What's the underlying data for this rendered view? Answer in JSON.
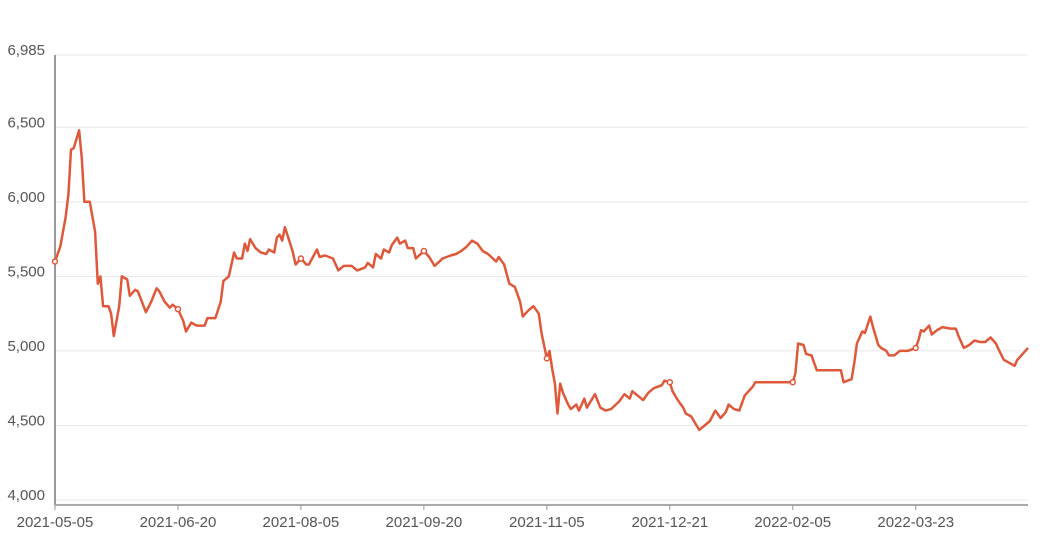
{
  "chart_data": {
    "type": "line",
    "x": [
      "2021-05-05",
      "2021-05-07",
      "2021-05-09",
      "2021-05-10",
      "2021-05-11",
      "2021-05-12",
      "2021-05-14",
      "2021-05-15",
      "2021-05-16",
      "2021-05-18",
      "2021-05-20",
      "2021-05-21",
      "2021-05-22",
      "2021-05-23",
      "2021-05-25",
      "2021-05-26",
      "2021-05-27",
      "2021-05-29",
      "2021-05-30",
      "2021-06-01",
      "2021-06-02",
      "2021-06-04",
      "2021-06-05",
      "2021-06-08",
      "2021-06-10",
      "2021-06-12",
      "2021-06-13",
      "2021-06-15",
      "2021-06-17",
      "2021-06-18",
      "2021-06-20",
      "2021-06-22",
      "2021-06-23",
      "2021-06-25",
      "2021-06-27",
      "2021-06-30",
      "2021-07-01",
      "2021-07-04",
      "2021-07-06",
      "2021-07-07",
      "2021-07-09",
      "2021-07-11",
      "2021-07-12",
      "2021-07-14",
      "2021-07-15",
      "2021-07-16",
      "2021-07-17",
      "2021-07-19",
      "2021-07-21",
      "2021-07-23",
      "2021-07-24",
      "2021-07-26",
      "2021-07-27",
      "2021-07-28",
      "2021-07-29",
      "2021-07-30",
      "2021-08-01",
      "2021-08-02",
      "2021-08-03",
      "2021-08-05",
      "2021-08-07",
      "2021-08-08",
      "2021-08-11",
      "2021-08-12",
      "2021-08-14",
      "2021-08-17",
      "2021-08-19",
      "2021-08-21",
      "2021-08-24",
      "2021-08-26",
      "2021-08-29",
      "2021-08-30",
      "2021-09-01",
      "2021-09-02",
      "2021-09-04",
      "2021-09-05",
      "2021-09-07",
      "2021-09-08",
      "2021-09-10",
      "2021-09-11",
      "2021-09-13",
      "2021-09-14",
      "2021-09-16",
      "2021-09-17",
      "2021-09-20",
      "2021-09-22",
      "2021-09-24",
      "2021-09-27",
      "2021-09-30",
      "2021-10-02",
      "2021-10-04",
      "2021-10-06",
      "2021-10-08",
      "2021-10-10",
      "2021-10-12",
      "2021-10-14",
      "2021-10-17",
      "2021-10-18",
      "2021-10-20",
      "2021-10-22",
      "2021-10-24",
      "2021-10-26",
      "2021-10-27",
      "2021-10-29",
      "2021-10-31",
      "2021-11-02",
      "2021-11-03",
      "2021-11-05",
      "2021-11-06",
      "2021-11-07",
      "2021-11-08",
      "2021-11-09",
      "2021-11-10",
      "2021-11-11",
      "2021-11-13",
      "2021-11-14",
      "2021-11-16",
      "2021-11-17",
      "2021-11-19",
      "2021-11-20",
      "2021-11-21",
      "2021-11-23",
      "2021-11-25",
      "2021-11-27",
      "2021-11-29",
      "2021-12-02",
      "2021-12-04",
      "2021-12-06",
      "2021-12-07",
      "2021-12-09",
      "2021-12-11",
      "2021-12-13",
      "2021-12-15",
      "2021-12-18",
      "2021-12-19",
      "2021-12-21",
      "2021-12-22",
      "2021-12-24",
      "2021-12-26",
      "2021-12-27",
      "2021-12-29",
      "2021-12-30",
      "2022-01-01",
      "2022-01-03",
      "2022-01-05",
      "2022-01-07",
      "2022-01-09",
      "2022-01-11",
      "2022-01-12",
      "2022-01-14",
      "2022-01-16",
      "2022-01-18",
      "2022-01-20",
      "2022-01-21",
      "2022-01-22",
      "2022-01-25",
      "2022-01-31",
      "2022-02-05",
      "2022-02-06",
      "2022-02-07",
      "2022-02-09",
      "2022-02-10",
      "2022-02-12",
      "2022-02-14",
      "2022-02-17",
      "2022-02-23",
      "2022-02-24",
      "2022-02-27",
      "2022-02-28",
      "2022-03-01",
      "2022-03-03",
      "2022-03-04",
      "2022-03-06",
      "2022-03-07",
      "2022-03-09",
      "2022-03-10",
      "2022-03-12",
      "2022-03-13",
      "2022-03-15",
      "2022-03-17",
      "2022-03-20",
      "2022-03-23",
      "2022-03-24",
      "2022-03-25",
      "2022-03-26",
      "2022-03-28",
      "2022-03-29",
      "2022-03-31",
      "2022-04-02",
      "2022-04-05",
      "2022-04-07",
      "2022-04-08",
      "2022-04-10",
      "2022-04-12",
      "2022-04-14",
      "2022-04-16",
      "2022-04-18",
      "2022-04-20",
      "2022-04-22",
      "2022-04-23",
      "2022-04-25",
      "2022-04-27",
      "2022-04-29",
      "2022-04-30",
      "2022-05-04"
    ],
    "values": [
      5600,
      5700,
      5900,
      6050,
      6350,
      6360,
      6480,
      6300,
      6000,
      6000,
      5800,
      5450,
      5500,
      5300,
      5300,
      5250,
      5100,
      5300,
      5500,
      5480,
      5370,
      5410,
      5400,
      5260,
      5330,
      5420,
      5400,
      5330,
      5290,
      5310,
      5280,
      5200,
      5130,
      5190,
      5170,
      5170,
      5220,
      5220,
      5330,
      5470,
      5500,
      5660,
      5620,
      5620,
      5720,
      5670,
      5750,
      5690,
      5660,
      5650,
      5680,
      5660,
      5760,
      5780,
      5740,
      5830,
      5720,
      5660,
      5580,
      5620,
      5580,
      5580,
      5680,
      5630,
      5640,
      5620,
      5540,
      5570,
      5570,
      5540,
      5560,
      5590,
      5560,
      5650,
      5620,
      5680,
      5660,
      5710,
      5760,
      5720,
      5740,
      5690,
      5690,
      5620,
      5670,
      5630,
      5570,
      5620,
      5640,
      5650,
      5670,
      5700,
      5740,
      5720,
      5670,
      5650,
      5600,
      5630,
      5580,
      5450,
      5430,
      5330,
      5230,
      5270,
      5300,
      5250,
      5120,
      4950,
      5000,
      4880,
      4780,
      4580,
      4780,
      4720,
      4640,
      4610,
      4640,
      4600,
      4680,
      4620,
      4650,
      4710,
      4620,
      4600,
      4610,
      4660,
      4710,
      4680,
      4730,
      4700,
      4670,
      4720,
      4750,
      4770,
      4800,
      4790,
      4730,
      4670,
      4620,
      4580,
      4560,
      4530,
      4470,
      4500,
      4530,
      4600,
      4550,
      4590,
      4640,
      4610,
      4600,
      4700,
      4740,
      4760,
      4790,
      4790,
      4790,
      4790,
      4850,
      5050,
      5040,
      4980,
      4970,
      4870,
      4870,
      4870,
      4790,
      4810,
      4920,
      5050,
      5130,
      5120,
      5230,
      5160,
      5040,
      5020,
      5000,
      4970,
      4970,
      5000,
      5000,
      5020,
      5070,
      5140,
      5130,
      5170,
      5110,
      5140,
      5160,
      5150,
      5150,
      5100,
      5020,
      5040,
      5070,
      5060,
      5060,
      5090,
      5050,
      5010,
      4940,
      4920,
      4900,
      4940,
      5020
    ],
    "color": "#e0583a",
    "xlim": [
      "2021-05-05",
      "2022-05-04"
    ],
    "xticks": [
      "2021-05-05",
      "2021-06-20",
      "2021-08-05",
      "2021-09-20",
      "2021-11-05",
      "2021-12-21",
      "2022-02-05",
      "2022-03-23"
    ],
    "ylim": [
      4000,
      6985
    ],
    "yticks": [
      {
        "value": 4000,
        "label": "4,000"
      },
      {
        "value": 4500,
        "label": "4,500"
      },
      {
        "value": 5000,
        "label": "5,000"
      },
      {
        "value": 5500,
        "label": "5,500"
      },
      {
        "value": 6000,
        "label": "6,000"
      },
      {
        "value": 6500,
        "label": "6,500"
      },
      {
        "value": 6985,
        "label": "6,985"
      }
    ],
    "grid": true
  }
}
